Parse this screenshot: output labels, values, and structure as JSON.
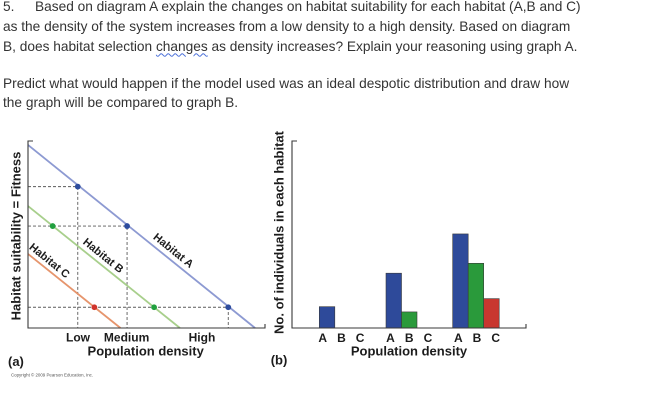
{
  "question": {
    "number": "5.",
    "paragraph1": {
      "line1": "Based on diagram A explain the changes on habitat suitability for each habitat (A,B and C)",
      "line2": "as the density of the system increases from a low density to a high density. Based on diagram",
      "line3_before": "B, does habitat selection ",
      "line3_flagged_word": "changes",
      "line3_after": " as density increases? Explain your reasoning using graph A."
    },
    "paragraph2": {
      "line1": "Predict what would happen if the model used was an ideal despotic distribution and draw how",
      "line2": "the graph will be compared to graph B."
    }
  },
  "chart_data": [
    {
      "type": "line",
      "panel": "(a)",
      "xlabel": "Population density",
      "ylabel": "Habitat suitability = Fitness",
      "xlim": [
        0,
        100
      ],
      "ylim": [
        0,
        100
      ],
      "grid": false,
      "label_angle": 39,
      "x_ticks": [
        {
          "label": "Low",
          "x": 21.1
        },
        {
          "label": "Medium",
          "x": 41.6
        },
        {
          "label": "High",
          "x": 73.4
        }
      ],
      "series": [
        {
          "key": "a",
          "name": "Habitat A",
          "color": "#8d9ad2",
          "points": [
            [
              0,
              97.9
            ],
            [
              95.8,
              0
            ]
          ],
          "label_pos": [
            61.2,
            41.2
          ]
        },
        {
          "key": "b",
          "name": "Habitat B",
          "color": "#a8cf8c",
          "points": [
            [
              0,
              65.2
            ],
            [
              64.1,
              0
            ]
          ],
          "label_pos": [
            31.6,
            38.5
          ]
        },
        {
          "key": "c",
          "name": "Habitat C",
          "color": "#e6956d",
          "points": [
            [
              0,
              39.6
            ],
            [
              39.0,
              0
            ]
          ],
          "label_pos": [
            8.9,
            35.8
          ]
        }
      ],
      "guides": [
        {
          "x": 21.0,
          "y": 75.6
        },
        {
          "x": 41.8,
          "y": 54.5
        },
        {
          "x": 84.5,
          "y": 11.1
        }
      ],
      "markers": [
        {
          "series": "Habitat A",
          "x": 21.0,
          "y": 75.6,
          "color": "#2d4c9e"
        },
        {
          "series": "Habitat A",
          "x": 41.8,
          "y": 54.5,
          "color": "#2d4c9e"
        },
        {
          "series": "Habitat B",
          "x": 10.4,
          "y": 54.5,
          "color": "#21a03e"
        },
        {
          "series": "Habitat C",
          "x": 28.0,
          "y": 11.1,
          "color": "#d0342c"
        },
        {
          "series": "Habitat B",
          "x": 53.2,
          "y": 11.1,
          "color": "#21a03e"
        },
        {
          "series": "Habitat A",
          "x": 84.5,
          "y": 11.1,
          "color": "#2d4c9e"
        }
      ],
      "copyright": "Copyright © 2009 Pearson Education, Inc."
    },
    {
      "type": "bar",
      "panel": "(b)",
      "xlabel": "Population density",
      "ylabel": "No. of individuals in each habitat",
      "ylim": [
        0,
        100
      ],
      "grid": false,
      "series_names": [
        "A",
        "B",
        "C"
      ],
      "series_colors": [
        "#2e4a9a",
        "#2a9a3b",
        "#c8372f"
      ],
      "groups": [
        {
          "tick_labels": [
            "A",
            "B",
            "C"
          ],
          "values": [
            11.4,
            0,
            0
          ]
        },
        {
          "tick_labels": [
            "A",
            "B",
            "C"
          ],
          "values": [
            29.3,
            8.6,
            0
          ]
        },
        {
          "tick_labels": [
            "A",
            "B",
            "C"
          ],
          "values": [
            50.3,
            34.6,
            15.7
          ]
        }
      ]
    }
  ]
}
